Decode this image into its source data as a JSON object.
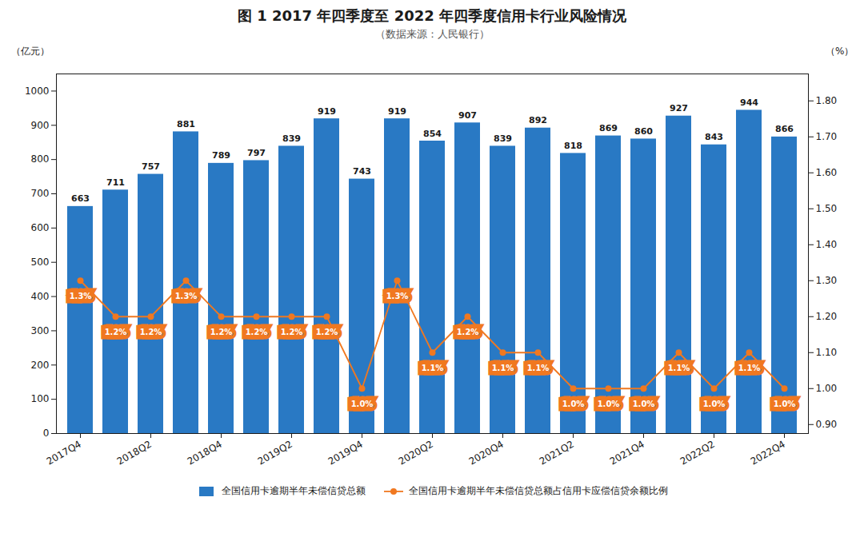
{
  "chart_data": {
    "type": "bar",
    "title": "图 1  2017 年四季度至 2022 年四季度信用卡行业风险情况",
    "subtitle": "（数据来源：人民银行）",
    "ylabel": "（亿元）",
    "y2label": "（%）",
    "categories": [
      "2017Q4",
      null,
      "2018Q2",
      null,
      "2018Q4",
      null,
      "2019Q2",
      null,
      "2019Q4",
      null,
      "2020Q2",
      null,
      "2020Q4",
      null,
      "2021Q2",
      null,
      "2021Q4",
      null,
      "2022Q2",
      null,
      "2022Q4"
    ],
    "series": [
      {
        "name": "全国信用卡逾期半年未偿信贷总额",
        "type": "bar",
        "color": "#2979C4",
        "values": [
          663,
          711,
          757,
          881,
          789,
          797,
          839,
          919,
          743,
          919,
          854,
          907,
          839,
          892,
          818,
          869,
          860,
          927,
          843,
          944,
          866
        ]
      },
      {
        "name": "全国信用卡逾期半年未偿信贷总额占信用卡应偿信贷余额比例",
        "type": "line",
        "color": "#F07820",
        "marker": "circle",
        "axis": "y2",
        "values": [
          1.3,
          1.2,
          1.2,
          1.3,
          1.2,
          1.2,
          1.2,
          1.2,
          1.0,
          1.3,
          1.1,
          1.2,
          1.1,
          1.1,
          1.0,
          1.0,
          1.0,
          1.1,
          1.0,
          1.1,
          1.0
        ],
        "value_labels": [
          "1.3%",
          "1.2%",
          "1.2%",
          "1.3%",
          "1.2%",
          "1.2%",
          "1.2%",
          "1.2%",
          "1.0%",
          "1.3%",
          "1.1%",
          "1.2%",
          "1.1%",
          "1.1%",
          "1.0%",
          "1.0%",
          "1.0%",
          "1.1%",
          "1.0%",
          "1.1%",
          "1.0%"
        ]
      }
    ],
    "ylim": [
      0,
      1050
    ],
    "yticks": [
      0,
      100,
      200,
      300,
      400,
      500,
      600,
      700,
      800,
      900,
      1000
    ],
    "y2lim": [
      0.875,
      1.875
    ],
    "y2ticks": [
      {
        "value": 0.9,
        "label": "0.90"
      },
      {
        "value": 1.0,
        "label": "1.00"
      },
      {
        "value": 1.1,
        "label": "1.10"
      },
      {
        "value": 1.2,
        "label": "1.20"
      },
      {
        "value": 1.3,
        "label": "1.30"
      },
      {
        "value": 1.4,
        "label": "1.40"
      },
      {
        "value": 1.5,
        "label": "1.50"
      },
      {
        "value": 1.6,
        "label": "1.60"
      },
      {
        "value": 1.7,
        "label": "1.70"
      },
      {
        "value": 1.8,
        "label": "1.80"
      }
    ],
    "grid": false,
    "legend": "bottom",
    "data_labels": true
  }
}
